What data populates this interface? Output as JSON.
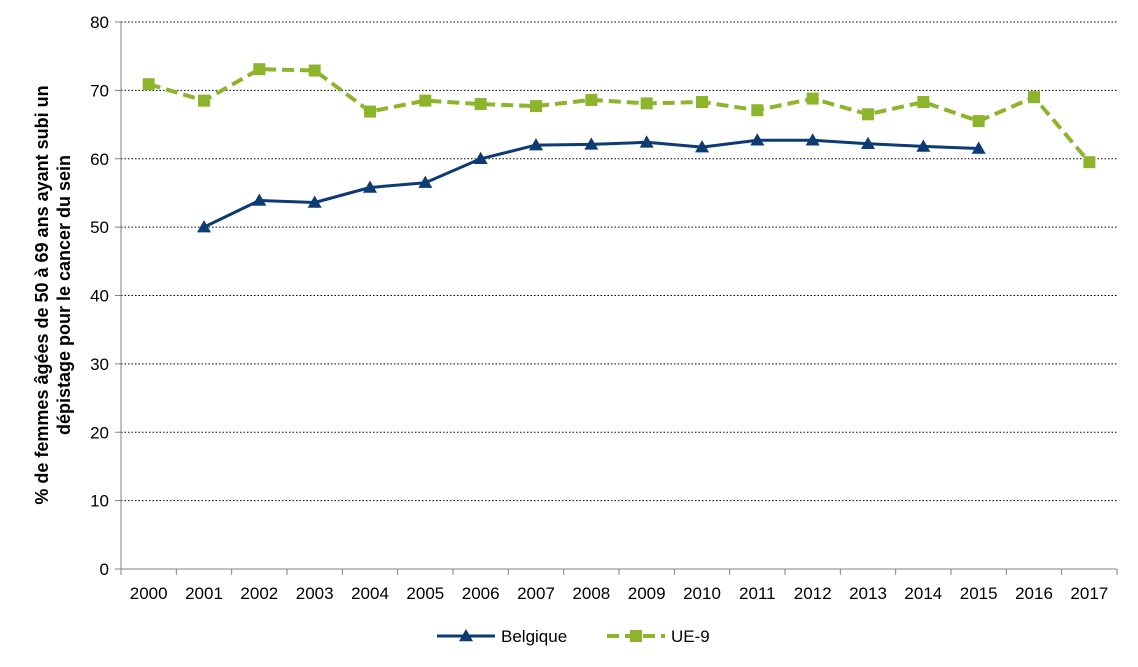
{
  "chart_data": {
    "type": "line",
    "title": "",
    "xlabel": "",
    "ylabel_line1": "% de femmes âgées de 50 à 69 ans ayant subi un",
    "ylabel_line2": "dépistage pour le cancer du sein",
    "ylim": [
      0,
      80
    ],
    "y_ticks": [
      0,
      10,
      20,
      30,
      40,
      50,
      60,
      70,
      80
    ],
    "grid": "horizontal-dotted",
    "legend_position": "bottom",
    "categories": [
      "2000",
      "2001",
      "2002",
      "2003",
      "2004",
      "2005",
      "2006",
      "2007",
      "2008",
      "2009",
      "2010",
      "2011",
      "2012",
      "2013",
      "2014",
      "2015",
      "2016",
      "2017"
    ],
    "series": [
      {
        "name": "Belgique",
        "color": "#0d3b73",
        "marker": "triangle",
        "dash": "solid",
        "values": [
          null,
          50.0,
          53.9,
          53.6,
          55.8,
          56.5,
          60.0,
          62.0,
          62.1,
          62.4,
          61.7,
          62.7,
          62.7,
          62.2,
          61.8,
          61.5,
          null,
          null
        ]
      },
      {
        "name": "UE-9",
        "color": "#8db52c",
        "marker": "square",
        "dash": "dashed",
        "values": [
          70.9,
          68.5,
          73.1,
          72.9,
          66.9,
          68.5,
          68.0,
          67.7,
          68.6,
          68.1,
          68.3,
          67.1,
          68.8,
          66.5,
          68.3,
          65.5,
          69.0,
          59.5
        ]
      }
    ]
  }
}
